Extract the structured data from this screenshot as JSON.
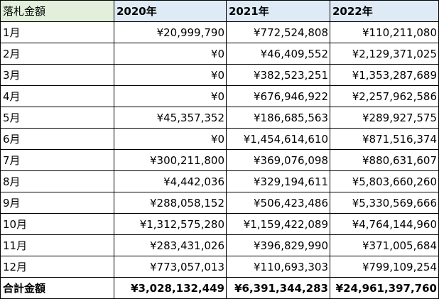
{
  "header": {
    "label": "落札金額",
    "years": [
      "2020年",
      "2021年",
      "2022年"
    ]
  },
  "rows": [
    {
      "month": "1月",
      "values": [
        "¥20,999,790",
        "¥772,524,808",
        "¥110,211,080"
      ]
    },
    {
      "month": "2月",
      "values": [
        "¥0",
        "¥46,409,552",
        "¥2,129,371,025"
      ]
    },
    {
      "month": "3月",
      "values": [
        "¥0",
        "¥382,523,251",
        "¥1,353,287,689"
      ]
    },
    {
      "month": "4月",
      "values": [
        "¥0",
        "¥676,946,922",
        "¥2,257,962,586"
      ]
    },
    {
      "month": "5月",
      "values": [
        "¥45,357,352",
        "¥186,685,563",
        "¥289,927,575"
      ]
    },
    {
      "month": "6月",
      "values": [
        "¥0",
        "¥1,454,614,610",
        "¥871,516,374"
      ]
    },
    {
      "month": "7月",
      "values": [
        "¥300,211,800",
        "¥369,076,098",
        "¥880,631,607"
      ]
    },
    {
      "month": "8月",
      "values": [
        "¥4,442,036",
        "¥329,194,611",
        "¥5,803,660,260"
      ]
    },
    {
      "month": "9月",
      "values": [
        "¥288,058,152",
        "¥506,423,486",
        "¥5,330,569,666"
      ]
    },
    {
      "month": "10月",
      "values": [
        "¥1,312,575,280",
        "¥1,159,422,089",
        "¥4,764,144,960"
      ]
    },
    {
      "month": "11月",
      "values": [
        "¥283,431,026",
        "¥396,829,990",
        "¥371,005,684"
      ]
    },
    {
      "month": "12月",
      "values": [
        "¥773,057,013",
        "¥110,693,303",
        "¥799,109,254"
      ]
    }
  ],
  "total": {
    "label": "合計金額",
    "values": [
      "¥3,028,132,449",
      "¥6,391,344,283",
      "¥24,961,397,760"
    ]
  },
  "colors": {
    "label_header_bg": "#e2efda",
    "year_header_bg": "#deebf7",
    "border": "#000000"
  }
}
